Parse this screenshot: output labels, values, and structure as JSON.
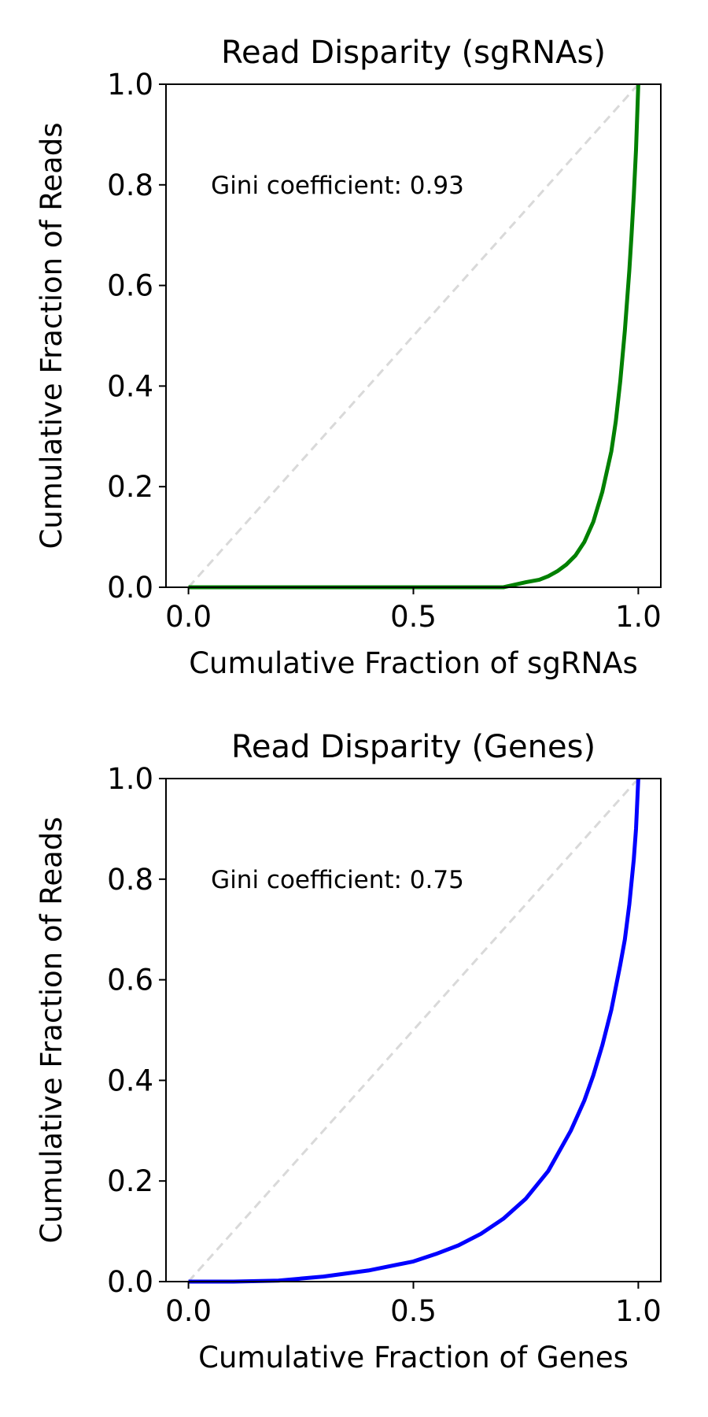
{
  "chart_data": [
    {
      "type": "line",
      "title": "Read Disparity (sgRNAs)",
      "xlabel": "Cumulative Fraction of sgRNAs",
      "ylabel": "Cumulative Fraction of Reads",
      "xlim": [
        -0.05,
        1.05
      ],
      "ylim": [
        0,
        1
      ],
      "xticks": [
        "0.0",
        "0.5",
        "1.0"
      ],
      "yticks": [
        "0.0",
        "0.2",
        "0.4",
        "0.6",
        "0.8",
        "1.0"
      ],
      "annotation": "Gini coefficient: 0.93",
      "grid": false,
      "series": [
        {
          "color": "#008000",
          "x": [
            0.0,
            0.1,
            0.2,
            0.3,
            0.4,
            0.5,
            0.6,
            0.7,
            0.75,
            0.78,
            0.8,
            0.82,
            0.84,
            0.86,
            0.88,
            0.9,
            0.92,
            0.94,
            0.95,
            0.96,
            0.97,
            0.98,
            0.985,
            0.99,
            0.995,
            1.0
          ],
          "y": [
            0.0,
            0.0,
            0.0,
            0.0,
            0.0,
            0.0,
            0.0,
            0.0,
            0.01,
            0.015,
            0.022,
            0.032,
            0.045,
            0.063,
            0.09,
            0.13,
            0.19,
            0.27,
            0.33,
            0.41,
            0.51,
            0.63,
            0.7,
            0.78,
            0.87,
            1.0
          ]
        },
        {
          "color": "#d9d9d9",
          "dashed": true,
          "x": [
            0,
            1
          ],
          "y": [
            0,
            1
          ]
        }
      ]
    },
    {
      "type": "line",
      "title": "Read Disparity (Genes)",
      "xlabel": "Cumulative Fraction of Genes",
      "ylabel": "Cumulative Fraction of Reads",
      "xlim": [
        -0.05,
        1.05
      ],
      "ylim": [
        0,
        1
      ],
      "xticks": [
        "0.0",
        "0.5",
        "1.0"
      ],
      "yticks": [
        "0.0",
        "0.2",
        "0.4",
        "0.6",
        "0.8",
        "1.0"
      ],
      "annotation": "Gini coefficient: 0.75",
      "grid": false,
      "series": [
        {
          "color": "#0000ff",
          "x": [
            0.0,
            0.1,
            0.2,
            0.3,
            0.4,
            0.5,
            0.55,
            0.6,
            0.65,
            0.7,
            0.75,
            0.8,
            0.85,
            0.88,
            0.9,
            0.92,
            0.94,
            0.96,
            0.97,
            0.98,
            0.99,
            0.995,
            1.0
          ],
          "y": [
            0.0,
            0.0,
            0.002,
            0.01,
            0.022,
            0.04,
            0.055,
            0.072,
            0.095,
            0.125,
            0.165,
            0.22,
            0.3,
            0.36,
            0.41,
            0.47,
            0.54,
            0.63,
            0.68,
            0.75,
            0.84,
            0.9,
            1.0
          ]
        },
        {
          "color": "#d9d9d9",
          "dashed": true,
          "x": [
            0,
            1
          ],
          "y": [
            0,
            1
          ]
        }
      ]
    }
  ]
}
